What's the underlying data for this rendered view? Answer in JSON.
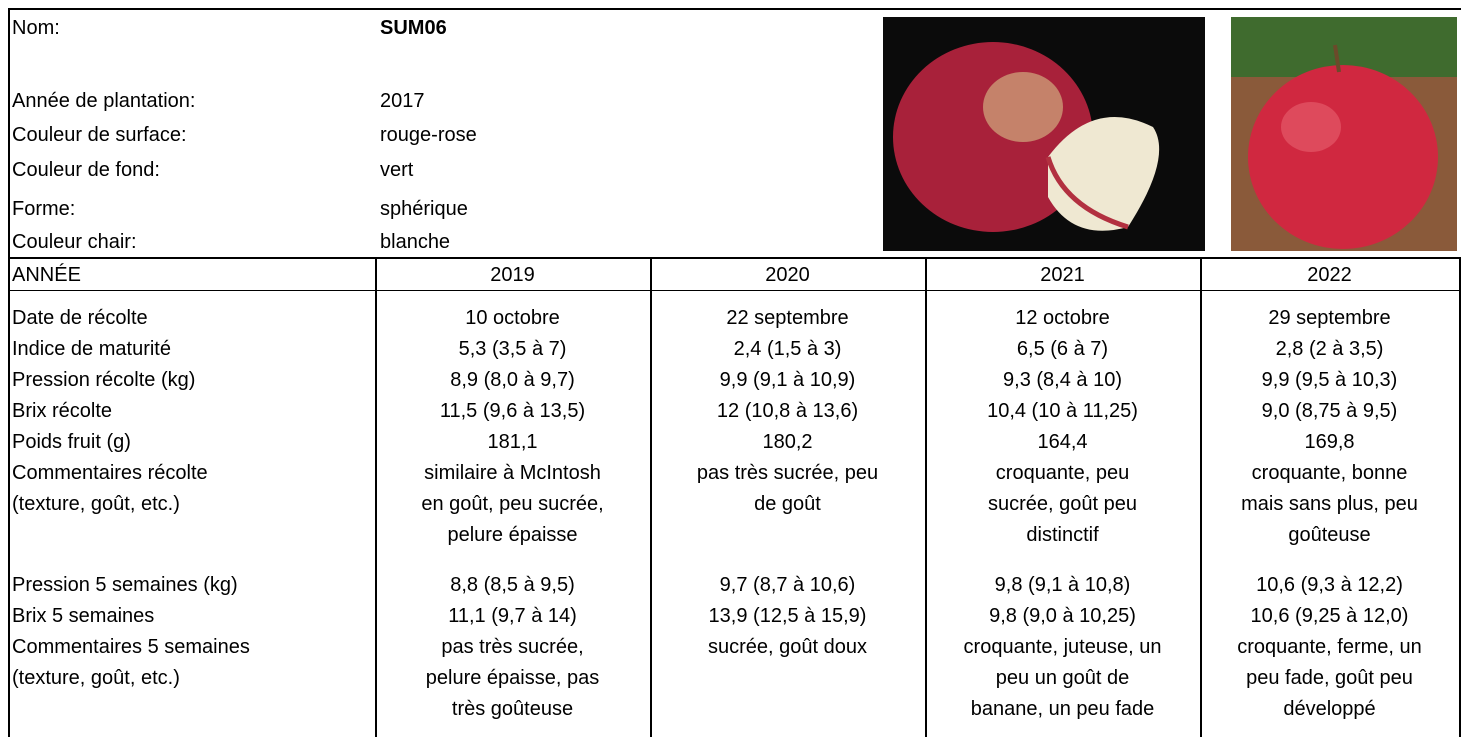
{
  "header": {
    "fields": [
      {
        "label": "Nom:",
        "value": "SUM06"
      },
      {
        "label": "Année de plantation:",
        "value": "2017"
      },
      {
        "label": "Couleur de surface:",
        "value": "rouge-rose"
      },
      {
        "label": "Couleur de fond:",
        "value": "vert"
      },
      {
        "label": "Forme:",
        "value": "sphérique"
      },
      {
        "label": "Couleur chair:",
        "value": "blanche"
      }
    ]
  },
  "table": {
    "columns": [
      "ANNÉE",
      "2019",
      "2020",
      "2021",
      "2022"
    ],
    "rows": [
      [
        [
          "Date de récolte"
        ],
        [
          "10 octobre"
        ],
        [
          "22 septembre"
        ],
        [
          "12 octobre"
        ],
        [
          "29 septembre"
        ]
      ],
      [
        [
          "Indice de maturité"
        ],
        [
          "5,3 (3,5 à 7)"
        ],
        [
          "2,4 (1,5 à 3)"
        ],
        [
          "6,5 (6 à 7)"
        ],
        [
          "2,8 (2 à 3,5)"
        ]
      ],
      [
        [
          "Pression récolte (kg)"
        ],
        [
          "8,9 (8,0 à 9,7)"
        ],
        [
          "9,9 (9,1 à 10,9)"
        ],
        [
          "9,3 (8,4 à 10)"
        ],
        [
          "9,9 (9,5 à 10,3)"
        ]
      ],
      [
        [
          "Brix récolte"
        ],
        [
          "11,5 (9,6 à 13,5)"
        ],
        [
          "12 (10,8 à 13,6)"
        ],
        [
          "10,4 (10 à 11,25)"
        ],
        [
          "9,0 (8,75 à 9,5)"
        ]
      ],
      [
        [
          "Poids fruit (g)"
        ],
        [
          "181,1"
        ],
        [
          "180,2"
        ],
        [
          "164,4"
        ],
        [
          "169,8"
        ]
      ],
      [
        [
          "Commentaires récolte",
          "(texture, goût, etc.)"
        ],
        [
          "similaire à McIntosh",
          "en goût, peu sucrée,",
          "pelure épaisse"
        ],
        [
          "pas très sucrée, peu",
          "de goût"
        ],
        [
          "croquante, peu",
          "sucrée, goût peu",
          "distinctif"
        ],
        [
          "croquante, bonne",
          "mais sans plus, peu",
          "goûteuse"
        ]
      ],
      [
        [
          "Pression 5 semaines (kg)"
        ],
        [
          "8,8 (8,5 à 9,5)"
        ],
        [
          "9,7 (8,7 à 10,6)"
        ],
        [
          "9,8 (9,1 à 10,8)"
        ],
        [
          "10,6 (9,3 à 12,2)"
        ]
      ],
      [
        [
          "Brix 5 semaines"
        ],
        [
          "11,1 (9,7 à 14)"
        ],
        [
          "13,9 (12,5 à 15,9)"
        ],
        [
          "9,8 (9,0 à 10,25)"
        ],
        [
          "10,6 (9,25 à 12,0)"
        ]
      ],
      [
        [
          "Commentaires 5 semaines",
          "(texture, goût, etc.)"
        ],
        [
          "pas très sucrée,",
          "pelure épaisse, pas",
          "très goûteuse"
        ],
        [
          "sucrée, goût doux"
        ],
        [
          "croquante, juteuse, un",
          "peu un goût de",
          "banane, un peu fade"
        ],
        [
          "croquante, ferme, un",
          "peu fade, goût peu",
          "développé"
        ]
      ]
    ]
  }
}
